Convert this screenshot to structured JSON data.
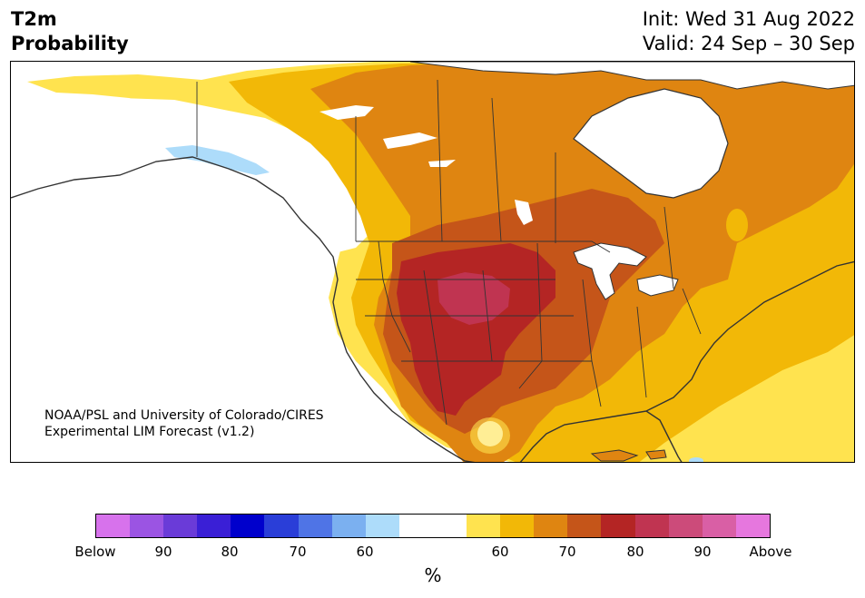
{
  "title": {
    "line1": "T2m",
    "line2": "Probability"
  },
  "header": {
    "init": "Init: Wed 31 Aug 2022",
    "valid": "Valid: 24 Sep – 30 Sep"
  },
  "credit": {
    "line1": "NOAA/PSL and University of Colorado/CIRES",
    "line2": "Experimental LIM Forecast (v1.2)"
  },
  "colorbar": {
    "colors": [
      "#d772ec",
      "#9b54e3",
      "#6a3bd8",
      "#3a1fd6",
      "#0000cc",
      "#2a3ed8",
      "#4f74e6",
      "#7bb0f0",
      "#addcfa",
      "#ffffff",
      "#ffffff",
      "#ffe34f",
      "#f2b807",
      "#df8511",
      "#c55519",
      "#b42524",
      "#c03451",
      "#cc4b7a",
      "#d95fa5",
      "#e677de"
    ],
    "labels": [
      "Below",
      "90",
      "80",
      "70",
      "60",
      "60",
      "70",
      "80",
      "90",
      "Above"
    ],
    "unit": "%"
  },
  "map_colors": {
    "ocean": "#ffffff",
    "neutral": "#ffffff",
    "p50_60": "#ffe34f",
    "p60_65": "#f2b807",
    "p65_70": "#df8511",
    "p70_75": "#c55519",
    "p75_80": "#b42524",
    "p80_85": "#c03451",
    "p85_90": "#cc4b7a",
    "below_light": "#addcfa",
    "lakes": "#ffffff",
    "borders": "#333333"
  }
}
